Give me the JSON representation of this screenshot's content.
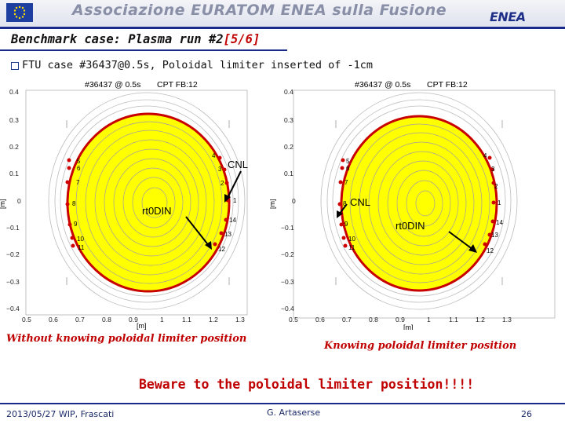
{
  "header": {
    "banner_title": "Associazione EURATOM ENEA sulla Fusione",
    "logo_text": "ENEA"
  },
  "slide": {
    "title": "Benchmark case: Plasma run #2",
    "title_part": "[5/6]",
    "bullet": "FTU case #36437@0.5s, Poloidal limiter inserted of -1cm"
  },
  "plots": {
    "left": {
      "shot_label": "#36437 @ 0.5s",
      "fb_label": "CPT FB:12",
      "ylabel": "[m]",
      "xlabel": "[m]",
      "yticks": [
        "0.4",
        "0.3",
        "0.2",
        "0.1",
        "0",
        "−0.1",
        "−0.2",
        "−0.3",
        "−0.4"
      ],
      "xticks": [
        "0.5",
        "0.6",
        "0.7",
        "0.8",
        "0.9",
        "1",
        "1.1",
        "1.2",
        "1.3"
      ],
      "probe_labels": [
        "4",
        "5",
        "6",
        "3",
        "7",
        "2",
        "8",
        "1",
        "9",
        "14",
        "10",
        "13",
        "11",
        "12"
      ],
      "annotation_cnl": "CNL",
      "annotation_odin": "rt0DIN",
      "caption": "Without knowing poloidal limiter position"
    },
    "right": {
      "shot_label": "#36437 @ 0.5s",
      "fb_label": "CPT FB:12",
      "ylabel": "[m]",
      "xlabel": "[m]",
      "yticks": [
        "0.4",
        "0.3",
        "0.2",
        "0.1",
        "0",
        "−0.1",
        "−0.2",
        "−0.3",
        "−0.4"
      ],
      "xticks": [
        "0.5",
        "0.6",
        "0.7",
        "0.8",
        "0.9",
        "1",
        "1.1",
        "1.2",
        "1.3"
      ],
      "probe_labels": [
        "4",
        "5",
        "6",
        "3",
        "7",
        "2",
        "8",
        "1",
        "9",
        "14",
        "10",
        "13",
        "11",
        "12"
      ],
      "annotation_cnl": "CNL",
      "annotation_odin": "rt0DIN",
      "caption": "Knowing poloidal limiter position"
    }
  },
  "warning": "Beware to the poloidal limiter position!!!!",
  "footer": {
    "date": "2013/05/27  WIP, Frascati",
    "author": "G. Artaserse",
    "page": "26"
  },
  "colors": {
    "plasma_fill": "#ffff00",
    "boundary": "#c80000",
    "rule": "#1a2a8a",
    "caption": "#c00000"
  }
}
